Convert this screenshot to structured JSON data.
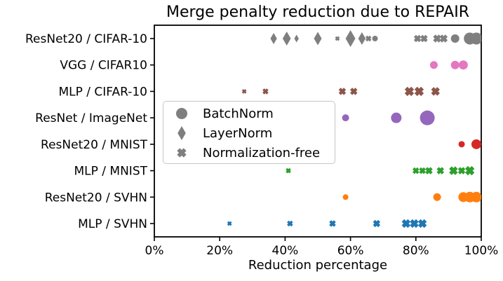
{
  "chart_data": {
    "type": "scatter",
    "title": "Merge penalty reduction due to REPAIR",
    "xlabel": "Reduction percentage",
    "ylabel": "",
    "xlim": [
      0,
      100
    ],
    "x_tick_values": [
      0,
      20,
      40,
      60,
      80,
      100
    ],
    "x_tick_labels": [
      "0%",
      "20%",
      "40%",
      "60%",
      "80%",
      "100%"
    ],
    "grid": false,
    "legend": {
      "position": "center-left-inside",
      "marker_color": "#7f7f7f",
      "entries": [
        {
          "label": "BatchNorm",
          "marker": "circle"
        },
        {
          "label": "LayerNorm",
          "marker": "diamond"
        },
        {
          "label": "Normalization-free",
          "marker": "x"
        }
      ]
    },
    "categories": [
      "ResNet20 / CIFAR-10",
      "VGG / CIFAR10",
      "MLP / CIFAR-10",
      "ResNet / ImageNet",
      "ResNet20 / MNIST",
      "MLP / MNIST",
      "ResNet20 / SVHN",
      "MLP / SVHN"
    ],
    "series": [
      {
        "label": "ResNet20 / CIFAR-10",
        "color": "#7f7f7f",
        "points": [
          {
            "x": 36.5,
            "marker": "diamond",
            "size": 8
          },
          {
            "x": 40.5,
            "marker": "diamond",
            "size": 10
          },
          {
            "x": 43.5,
            "marker": "diamond",
            "size": 5.5
          },
          {
            "x": 50,
            "marker": "diamond",
            "size": 9.5
          },
          {
            "x": 56,
            "marker": "x",
            "size": 3.5
          },
          {
            "x": 60,
            "marker": "diamond",
            "size": 12
          },
          {
            "x": 63.5,
            "marker": "diamond",
            "size": 9
          },
          {
            "x": 65.5,
            "marker": "x",
            "size": 4.5
          },
          {
            "x": 67.5,
            "marker": "circle",
            "size": 4
          },
          {
            "x": 80.5,
            "marker": "x",
            "size": 5.5
          },
          {
            "x": 82.5,
            "marker": "x",
            "size": 5.5
          },
          {
            "x": 86.5,
            "marker": "x",
            "size": 6
          },
          {
            "x": 88.5,
            "marker": "x",
            "size": 6
          },
          {
            "x": 92,
            "marker": "circle",
            "size": 6
          },
          {
            "x": 96.5,
            "marker": "circle",
            "size": 8.5
          },
          {
            "x": 98.5,
            "marker": "circle",
            "size": 8.5
          }
        ]
      },
      {
        "label": "VGG / CIFAR10",
        "color": "#e377c2",
        "points": [
          {
            "x": 85.5,
            "marker": "circle",
            "size": 5.5
          },
          {
            "x": 92,
            "marker": "circle",
            "size": 6
          },
          {
            "x": 94.5,
            "marker": "circle",
            "size": 6.5
          }
        ]
      },
      {
        "label": "MLP / CIFAR-10",
        "color": "#8c564b",
        "points": [
          {
            "x": 27.5,
            "marker": "x",
            "size": 3.5
          },
          {
            "x": 34,
            "marker": "x",
            "size": 4.5
          },
          {
            "x": 57.5,
            "marker": "x",
            "size": 5.5
          },
          {
            "x": 61,
            "marker": "x",
            "size": 5.5
          },
          {
            "x": 78,
            "marker": "x",
            "size": 7
          },
          {
            "x": 81,
            "marker": "x",
            "size": 7
          },
          {
            "x": 86,
            "marker": "x",
            "size": 6.5
          }
        ]
      },
      {
        "label": "ResNet / ImageNet",
        "color": "#9467bd",
        "points": [
          {
            "x": 58.5,
            "marker": "circle",
            "size": 5
          },
          {
            "x": 74,
            "marker": "circle",
            "size": 7.5
          },
          {
            "x": 83.5,
            "marker": "circle",
            "size": 10.5
          }
        ]
      },
      {
        "label": "ResNet20 / MNIST",
        "color": "#d62728",
        "points": [
          {
            "x": 94,
            "marker": "circle",
            "size": 4.5
          },
          {
            "x": 98.5,
            "marker": "circle",
            "size": 7
          }
        ]
      },
      {
        "label": "MLP / MNIST",
        "color": "#2ca02c",
        "points": [
          {
            "x": 41,
            "marker": "x",
            "size": 4
          },
          {
            "x": 80,
            "marker": "x",
            "size": 5
          },
          {
            "x": 82,
            "marker": "x",
            "size": 5
          },
          {
            "x": 84,
            "marker": "x",
            "size": 5.5
          },
          {
            "x": 87.5,
            "marker": "x",
            "size": 5.5
          },
          {
            "x": 91.5,
            "marker": "x",
            "size": 6.5
          },
          {
            "x": 94,
            "marker": "x",
            "size": 5.5
          },
          {
            "x": 96.5,
            "marker": "x",
            "size": 7
          }
        ]
      },
      {
        "label": "ResNet20 / SVHN",
        "color": "#ff7f0e",
        "points": [
          {
            "x": 58.5,
            "marker": "circle",
            "size": 4
          },
          {
            "x": 86.5,
            "marker": "circle",
            "size": 5.5
          },
          {
            "x": 94.5,
            "marker": "circle",
            "size": 7
          },
          {
            "x": 96.5,
            "marker": "circle",
            "size": 7.5
          },
          {
            "x": 98.5,
            "marker": "circle",
            "size": 7.5
          }
        ]
      },
      {
        "label": "MLP / SVHN",
        "color": "#1f77b4",
        "points": [
          {
            "x": 23,
            "marker": "x",
            "size": 3.5
          },
          {
            "x": 41.5,
            "marker": "x",
            "size": 4.5
          },
          {
            "x": 54.5,
            "marker": "x",
            "size": 5
          },
          {
            "x": 68,
            "marker": "x",
            "size": 5.5
          },
          {
            "x": 77,
            "marker": "x",
            "size": 6.5
          },
          {
            "x": 79.5,
            "marker": "x",
            "size": 6.5
          },
          {
            "x": 82,
            "marker": "x",
            "size": 6.5
          }
        ]
      }
    ]
  }
}
